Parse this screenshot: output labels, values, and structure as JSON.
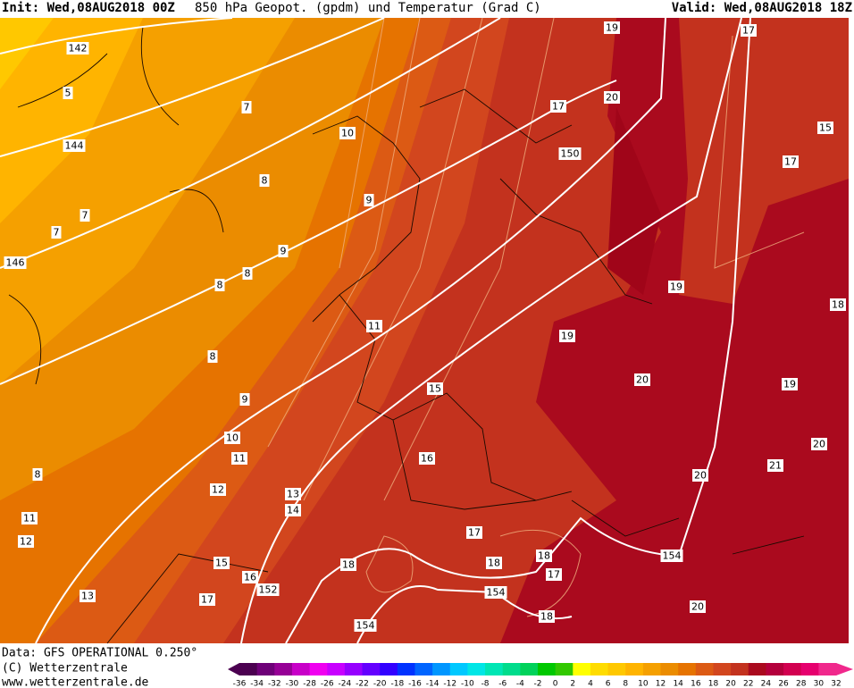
{
  "header": {
    "init": "Init: Wed,08AUG2018 00Z",
    "title": "850 hPa Geopot. (gpdm) und Temperatur (Grad C)",
    "valid": "Valid: Wed,08AUG2018 18Z"
  },
  "footer": {
    "source": "Data: GFS OPERATIONAL 0.250°",
    "copyright": "(C) Wetterzentrale",
    "url": "www.wetterzentrale.de"
  },
  "labels": [
    142,
    5,
    144,
    7,
    10,
    8,
    9,
    7,
    7,
    146,
    9,
    8,
    8,
    11,
    8,
    9,
    10,
    11,
    12,
    13,
    14,
    8,
    11,
    12,
    15,
    16,
    152,
    17,
    13,
    18,
    154,
    17,
    18,
    18,
    17,
    154,
    18,
    154,
    20,
    20,
    21,
    20,
    19,
    20,
    19,
    19,
    18,
    17,
    15,
    17,
    19,
    20,
    17,
    150,
    16,
    15
  ],
  "legend": {
    "ticks": [
      -36,
      -34,
      -32,
      -30,
      -28,
      -26,
      -24,
      -22,
      -20,
      -18,
      -16,
      -14,
      -12,
      -10,
      -8,
      -6,
      -4,
      -2,
      0,
      2,
      4,
      6,
      8,
      10,
      12,
      14,
      16,
      18,
      20,
      22,
      24,
      26,
      28,
      30,
      32
    ],
    "colors": [
      "#4b0050",
      "#6e0078",
      "#960096",
      "#c800c8",
      "#f000f0",
      "#c800ff",
      "#9600ff",
      "#6400ff",
      "#3200ff",
      "#0032ff",
      "#0064ff",
      "#0096ff",
      "#00c8ff",
      "#00e6e6",
      "#00e6b4",
      "#00dc8c",
      "#00d25a",
      "#00c800",
      "#32c800",
      "#ffff00",
      "#ffdc00",
      "#ffc800",
      "#ffb400",
      "#f5a000",
      "#eb8c00",
      "#e67300",
      "#dc5a14",
      "#d2461e",
      "#c3321e",
      "#aa0a1e",
      "#b4003c",
      "#d20050",
      "#e6006e",
      "#f0288c"
    ]
  }
}
